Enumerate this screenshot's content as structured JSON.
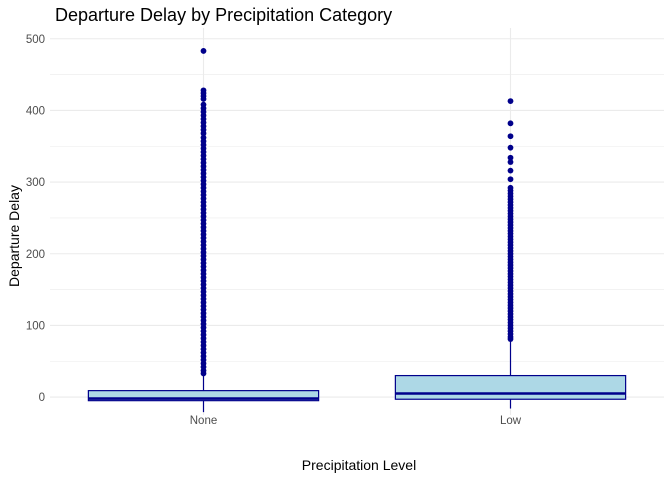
{
  "chart_data": {
    "type": "boxplot",
    "title": "Departure Delay by Precipitation Category",
    "xlabel": "Precipitation Level",
    "ylabel": "Departure Delay",
    "categories": [
      "None",
      "Low"
    ],
    "ylim": [
      -25,
      515
    ],
    "yticks": [
      0,
      100,
      200,
      300,
      400,
      500
    ],
    "grid": true,
    "colors": {
      "box_fill": "#add8e6",
      "box_stroke": "#00008b",
      "outlier": "#00008b",
      "grid": "#ebebeb"
    },
    "boxes": [
      {
        "category": "None",
        "whisker_low": -21,
        "q1": -5,
        "median": -2,
        "q3": 9,
        "whisker_high": 30,
        "outliers": [
          483,
          428,
          424,
          420,
          416,
          408,
          403,
          398,
          393,
          388,
          383,
          378,
          373,
          368,
          362,
          357,
          352,
          347,
          342,
          337,
          332,
          327,
          322,
          317,
          312,
          307,
          302,
          297,
          292,
          287,
          282,
          277,
          272,
          267,
          262,
          257,
          252,
          247,
          242,
          237,
          232,
          227,
          222,
          217,
          212,
          207,
          202,
          197,
          192,
          187,
          182,
          177,
          172,
          167,
          162,
          157,
          152,
          147,
          142,
          137,
          132,
          127,
          122,
          117,
          112,
          107,
          102,
          97,
          92,
          87,
          82,
          77,
          72,
          67,
          62,
          57,
          52,
          47,
          42,
          37,
          33
        ]
      },
      {
        "category": "Low",
        "whisker_low": -16,
        "q1": -3,
        "median": 5,
        "q3": 30,
        "whisker_high": 79,
        "outliers": [
          413,
          382,
          364,
          348,
          334,
          328,
          316,
          304,
          292,
          288,
          284,
          280,
          276,
          272,
          268,
          264,
          260,
          256,
          252,
          248,
          244,
          240,
          236,
          232,
          228,
          224,
          220,
          216,
          212,
          208,
          204,
          200,
          196,
          192,
          188,
          184,
          180,
          176,
          172,
          168,
          164,
          160,
          156,
          152,
          148,
          144,
          140,
          136,
          132,
          128,
          124,
          120,
          116,
          112,
          108,
          104,
          100,
          96,
          92,
          88,
          84,
          81
        ]
      }
    ]
  }
}
